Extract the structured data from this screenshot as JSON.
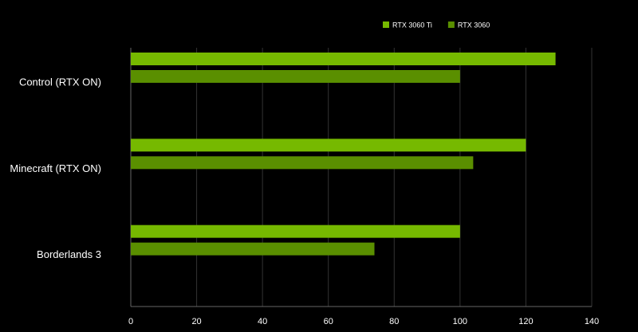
{
  "chart_data": {
    "type": "hbar",
    "categories": [
      "Control (RTX ON)",
      "Minecraft (RTX ON)",
      "Borderlands 3"
    ],
    "series": [
      {
        "name": "RTX 3060 Ti",
        "color": "#76b900",
        "values": [
          129,
          120,
          100
        ]
      },
      {
        "name": "RTX 3060",
        "color": "#5a8f00",
        "values": [
          100,
          104,
          74
        ]
      }
    ],
    "xlim": [
      0,
      140
    ],
    "xticks": [
      0,
      20,
      40,
      60,
      80,
      100,
      120,
      140
    ],
    "grid": true
  }
}
